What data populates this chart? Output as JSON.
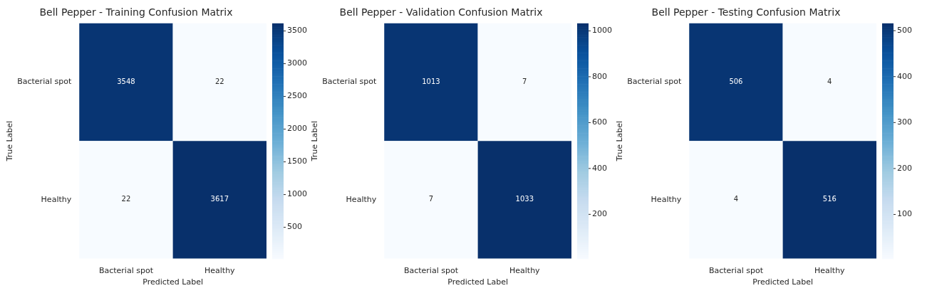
{
  "chart_data": [
    {
      "type": "heatmap",
      "title": "Bell Pepper - Training Confusion Matrix",
      "xlabel": "Predicted Label",
      "ylabel": "True Label",
      "categories": [
        "Bacterial spot",
        "Healthy"
      ],
      "y_categories": [
        "Bacterial spot",
        "Healthy"
      ],
      "cells": [
        [
          3548,
          22
        ],
        [
          22,
          3617
        ]
      ],
      "clim": [
        22,
        3617
      ],
      "cticks": [
        500,
        1000,
        1500,
        2000,
        2500,
        3000,
        3500
      ],
      "data_labels": true
    },
    {
      "type": "heatmap",
      "title": "Bell Pepper - Validation Confusion Matrix",
      "xlabel": "Predicted Label",
      "ylabel": "True Label",
      "categories": [
        "Bacterial spot",
        "Healthy"
      ],
      "y_categories": [
        "Bacterial spot",
        "Healthy"
      ],
      "cells": [
        [
          1013,
          7
        ],
        [
          7,
          1033
        ]
      ],
      "clim": [
        7,
        1033
      ],
      "cticks": [
        200,
        400,
        600,
        800,
        1000
      ],
      "data_labels": true
    },
    {
      "type": "heatmap",
      "title": "Bell Pepper - Testing Confusion Matrix",
      "xlabel": "Predicted Label",
      "ylabel": "True Label",
      "categories": [
        "Bacterial spot",
        "Healthy"
      ],
      "y_categories": [
        "Bacterial spot",
        "Healthy"
      ],
      "cells": [
        [
          506,
          4
        ],
        [
          4,
          516
        ]
      ],
      "clim": [
        4,
        516
      ],
      "cticks": [
        100,
        200,
        300,
        400,
        500
      ],
      "data_labels": true
    }
  ]
}
